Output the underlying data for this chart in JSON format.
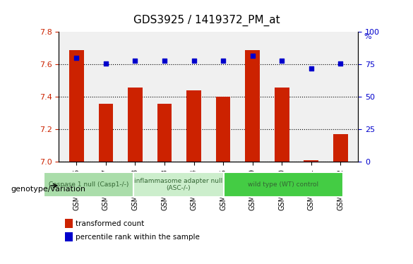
{
  "title": "GDS3925 / 1419372_PM_at",
  "samples": [
    "GSM619226",
    "GSM619227",
    "GSM619228",
    "GSM619233",
    "GSM619234",
    "GSM619235",
    "GSM619229",
    "GSM619230",
    "GSM619231",
    "GSM619232"
  ],
  "bar_values": [
    7.69,
    7.36,
    7.46,
    7.36,
    7.44,
    7.4,
    7.69,
    7.46,
    7.01,
    7.17
  ],
  "percentile_values": [
    80,
    76,
    78,
    78,
    78,
    78,
    82,
    78,
    72,
    76
  ],
  "bar_color": "#cc2200",
  "percentile_color": "#0000cc",
  "ylim_left": [
    7.0,
    7.8
  ],
  "ylim_right": [
    0,
    100
  ],
  "yticks_left": [
    7.0,
    7.2,
    7.4,
    7.6,
    7.8
  ],
  "yticks_right": [
    0,
    25,
    50,
    75,
    100
  ],
  "groups": [
    {
      "label": "Caspase 1 null (Casp1-/-)",
      "indices": [
        0,
        1,
        2
      ],
      "color": "#aaddaa"
    },
    {
      "label": "inflammasome adapter null\n(ASC-/-)",
      "indices": [
        3,
        4,
        5
      ],
      "color": "#cceecc"
    },
    {
      "label": "wild type (WT) control",
      "indices": [
        6,
        7,
        8,
        9
      ],
      "color": "#44cc44"
    }
  ],
  "legend_bar_label": "transformed count",
  "legend_pct_label": "percentile rank within the sample",
  "genotype_label": "genotype/variation",
  "bg_plot": "#f0f0f0",
  "bg_outer": "#ffffff",
  "dotted_line_color": "#000000",
  "xlabel_color": "#000000",
  "left_tick_color": "#cc2200",
  "right_tick_color": "#0000cc"
}
